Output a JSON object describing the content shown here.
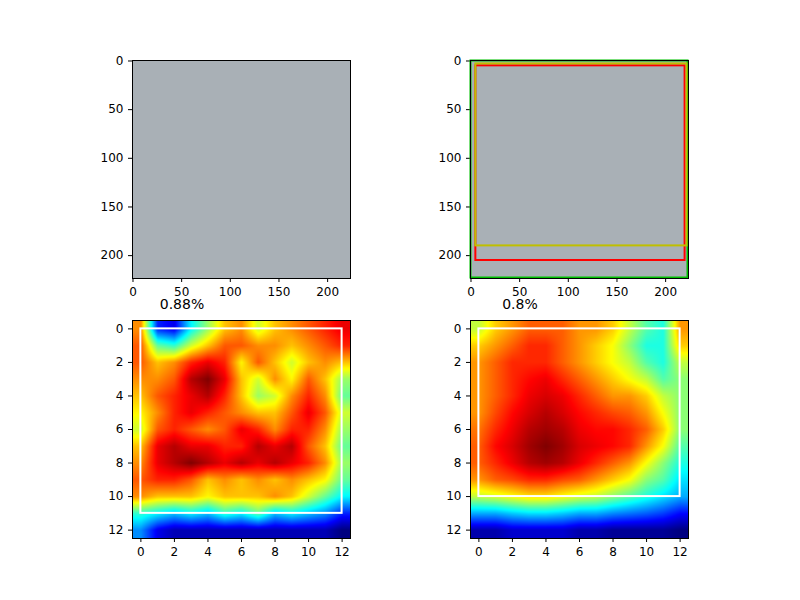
{
  "chart_data": [
    {
      "type": "image",
      "xlim": [
        -0.5,
        223.5
      ],
      "ylim": [
        223.5,
        -0.5
      ],
      "xticks": [
        0,
        50,
        100,
        150,
        200
      ],
      "yticks": [
        0,
        50,
        100,
        150,
        200
      ]
    },
    {
      "type": "image",
      "xlim": [
        -0.5,
        223.5
      ],
      "ylim": [
        223.5,
        -0.5
      ],
      "xticks": [
        0,
        50,
        100,
        150,
        200
      ],
      "yticks": [
        0,
        50,
        100,
        150,
        200
      ],
      "boxes": [
        {
          "color": "#00c000",
          "x1": 0,
          "y1": 0,
          "x2": 223,
          "y2": 223
        },
        {
          "color": "#ff0000",
          "x1": 5,
          "y1": 5,
          "x2": 220,
          "y2": 205
        },
        {
          "color": "#bfbf00",
          "x1": 5,
          "y1": 3,
          "x2": 222,
          "y2": 190
        }
      ]
    },
    {
      "type": "heatmap",
      "title": "0.88%",
      "xlim": [
        -0.5,
        12.5
      ],
      "ylim": [
        12.5,
        -0.5
      ],
      "xticks": [
        0,
        2,
        4,
        6,
        8,
        10,
        12
      ],
      "yticks": [
        0,
        2,
        4,
        6,
        8,
        10,
        12
      ],
      "cells": [
        [
          0.75,
          0.2,
          0.15,
          0.4,
          0.55,
          0.7,
          0.75,
          0.6,
          0.7,
          0.75,
          0.8,
          0.85,
          0.9
        ],
        [
          0.8,
          0.5,
          0.45,
          0.6,
          0.7,
          0.8,
          0.8,
          0.75,
          0.75,
          0.7,
          0.75,
          0.8,
          0.85
        ],
        [
          0.8,
          0.7,
          0.75,
          0.85,
          0.9,
          0.85,
          0.65,
          0.8,
          0.7,
          0.6,
          0.7,
          0.75,
          0.7
        ],
        [
          0.75,
          0.75,
          0.8,
          0.95,
          1.0,
          0.9,
          0.7,
          0.6,
          0.75,
          0.65,
          0.8,
          0.7,
          0.55
        ],
        [
          0.7,
          0.8,
          0.85,
          0.9,
          0.95,
          0.85,
          0.7,
          0.55,
          0.6,
          0.75,
          0.85,
          0.75,
          0.5
        ],
        [
          0.65,
          0.75,
          0.85,
          0.9,
          0.85,
          0.8,
          0.75,
          0.7,
          0.7,
          0.8,
          0.9,
          0.8,
          0.6
        ],
        [
          0.6,
          0.8,
          0.85,
          0.8,
          0.75,
          0.8,
          0.9,
          0.85,
          0.75,
          0.85,
          0.85,
          0.75,
          0.55
        ],
        [
          0.7,
          0.9,
          0.95,
          0.9,
          0.9,
          0.85,
          0.85,
          0.95,
          0.9,
          0.95,
          0.8,
          0.7,
          0.5
        ],
        [
          0.75,
          0.9,
          0.95,
          1.0,
          0.95,
          0.9,
          0.95,
          0.9,
          0.95,
          0.9,
          0.85,
          0.75,
          0.55
        ],
        [
          0.8,
          0.85,
          0.85,
          0.8,
          0.7,
          0.75,
          0.7,
          0.75,
          0.7,
          0.75,
          0.7,
          0.65,
          0.5
        ],
        [
          0.75,
          0.7,
          0.7,
          0.7,
          0.65,
          0.7,
          0.7,
          0.7,
          0.75,
          0.7,
          0.6,
          0.5,
          0.4
        ],
        [
          0.45,
          0.4,
          0.35,
          0.4,
          0.35,
          0.45,
          0.4,
          0.5,
          0.35,
          0.4,
          0.35,
          0.3,
          0.2
        ],
        [
          0.3,
          0.15,
          0.1,
          0.1,
          0.1,
          0.1,
          0.1,
          0.1,
          0.1,
          0.1,
          0.1,
          0.1,
          0.05
        ]
      ],
      "boxes": [
        {
          "color": "#ffffff",
          "x1": 0,
          "y1": 0,
          "x2": 12,
          "y2": 11
        }
      ]
    },
    {
      "type": "heatmap",
      "title": "0.8%",
      "xlim": [
        -0.5,
        12.5
      ],
      "ylim": [
        12.5,
        -0.5
      ],
      "xticks": [
        0,
        2,
        4,
        6,
        8,
        10,
        12
      ],
      "yticks": [
        0,
        2,
        4,
        6,
        8,
        10,
        12
      ],
      "cells": [
        [
          0.6,
          0.7,
          0.75,
          0.8,
          0.8,
          0.8,
          0.75,
          0.75,
          0.7,
          0.6,
          0.5,
          0.45,
          0.75
        ],
        [
          0.7,
          0.75,
          0.8,
          0.85,
          0.85,
          0.8,
          0.75,
          0.7,
          0.65,
          0.55,
          0.45,
          0.45,
          0.7
        ],
        [
          0.75,
          0.8,
          0.85,
          0.85,
          0.85,
          0.8,
          0.75,
          0.7,
          0.65,
          0.6,
          0.5,
          0.45,
          0.6
        ],
        [
          0.75,
          0.8,
          0.85,
          0.88,
          0.9,
          0.85,
          0.8,
          0.75,
          0.7,
          0.65,
          0.6,
          0.5,
          0.55
        ],
        [
          0.75,
          0.8,
          0.85,
          0.9,
          0.92,
          0.9,
          0.85,
          0.8,
          0.75,
          0.75,
          0.7,
          0.6,
          0.55
        ],
        [
          0.75,
          0.82,
          0.88,
          0.92,
          0.95,
          0.92,
          0.88,
          0.85,
          0.82,
          0.8,
          0.75,
          0.65,
          0.55
        ],
        [
          0.78,
          0.85,
          0.9,
          0.95,
          0.97,
          0.95,
          0.9,
          0.88,
          0.88,
          0.85,
          0.8,
          0.7,
          0.55
        ],
        [
          0.8,
          0.88,
          0.92,
          0.97,
          1.0,
          0.97,
          0.92,
          0.9,
          0.88,
          0.85,
          0.75,
          0.65,
          0.5
        ],
        [
          0.8,
          0.85,
          0.9,
          0.95,
          0.97,
          0.95,
          0.9,
          0.85,
          0.8,
          0.75,
          0.65,
          0.55,
          0.45
        ],
        [
          0.75,
          0.8,
          0.82,
          0.85,
          0.85,
          0.82,
          0.8,
          0.75,
          0.7,
          0.65,
          0.55,
          0.5,
          0.4
        ],
        [
          0.6,
          0.62,
          0.65,
          0.68,
          0.68,
          0.65,
          0.62,
          0.6,
          0.55,
          0.5,
          0.45,
          0.4,
          0.35
        ],
        [
          0.35,
          0.35,
          0.38,
          0.4,
          0.4,
          0.38,
          0.35,
          0.35,
          0.32,
          0.3,
          0.28,
          0.25,
          0.2
        ],
        [
          0.12,
          0.12,
          0.15,
          0.15,
          0.15,
          0.15,
          0.12,
          0.12,
          0.1,
          0.1,
          0.1,
          0.1,
          0.08
        ]
      ],
      "boxes": [
        {
          "color": "#ffffff",
          "x1": 0,
          "y1": 0,
          "x2": 12,
          "y2": 10
        }
      ]
    }
  ]
}
